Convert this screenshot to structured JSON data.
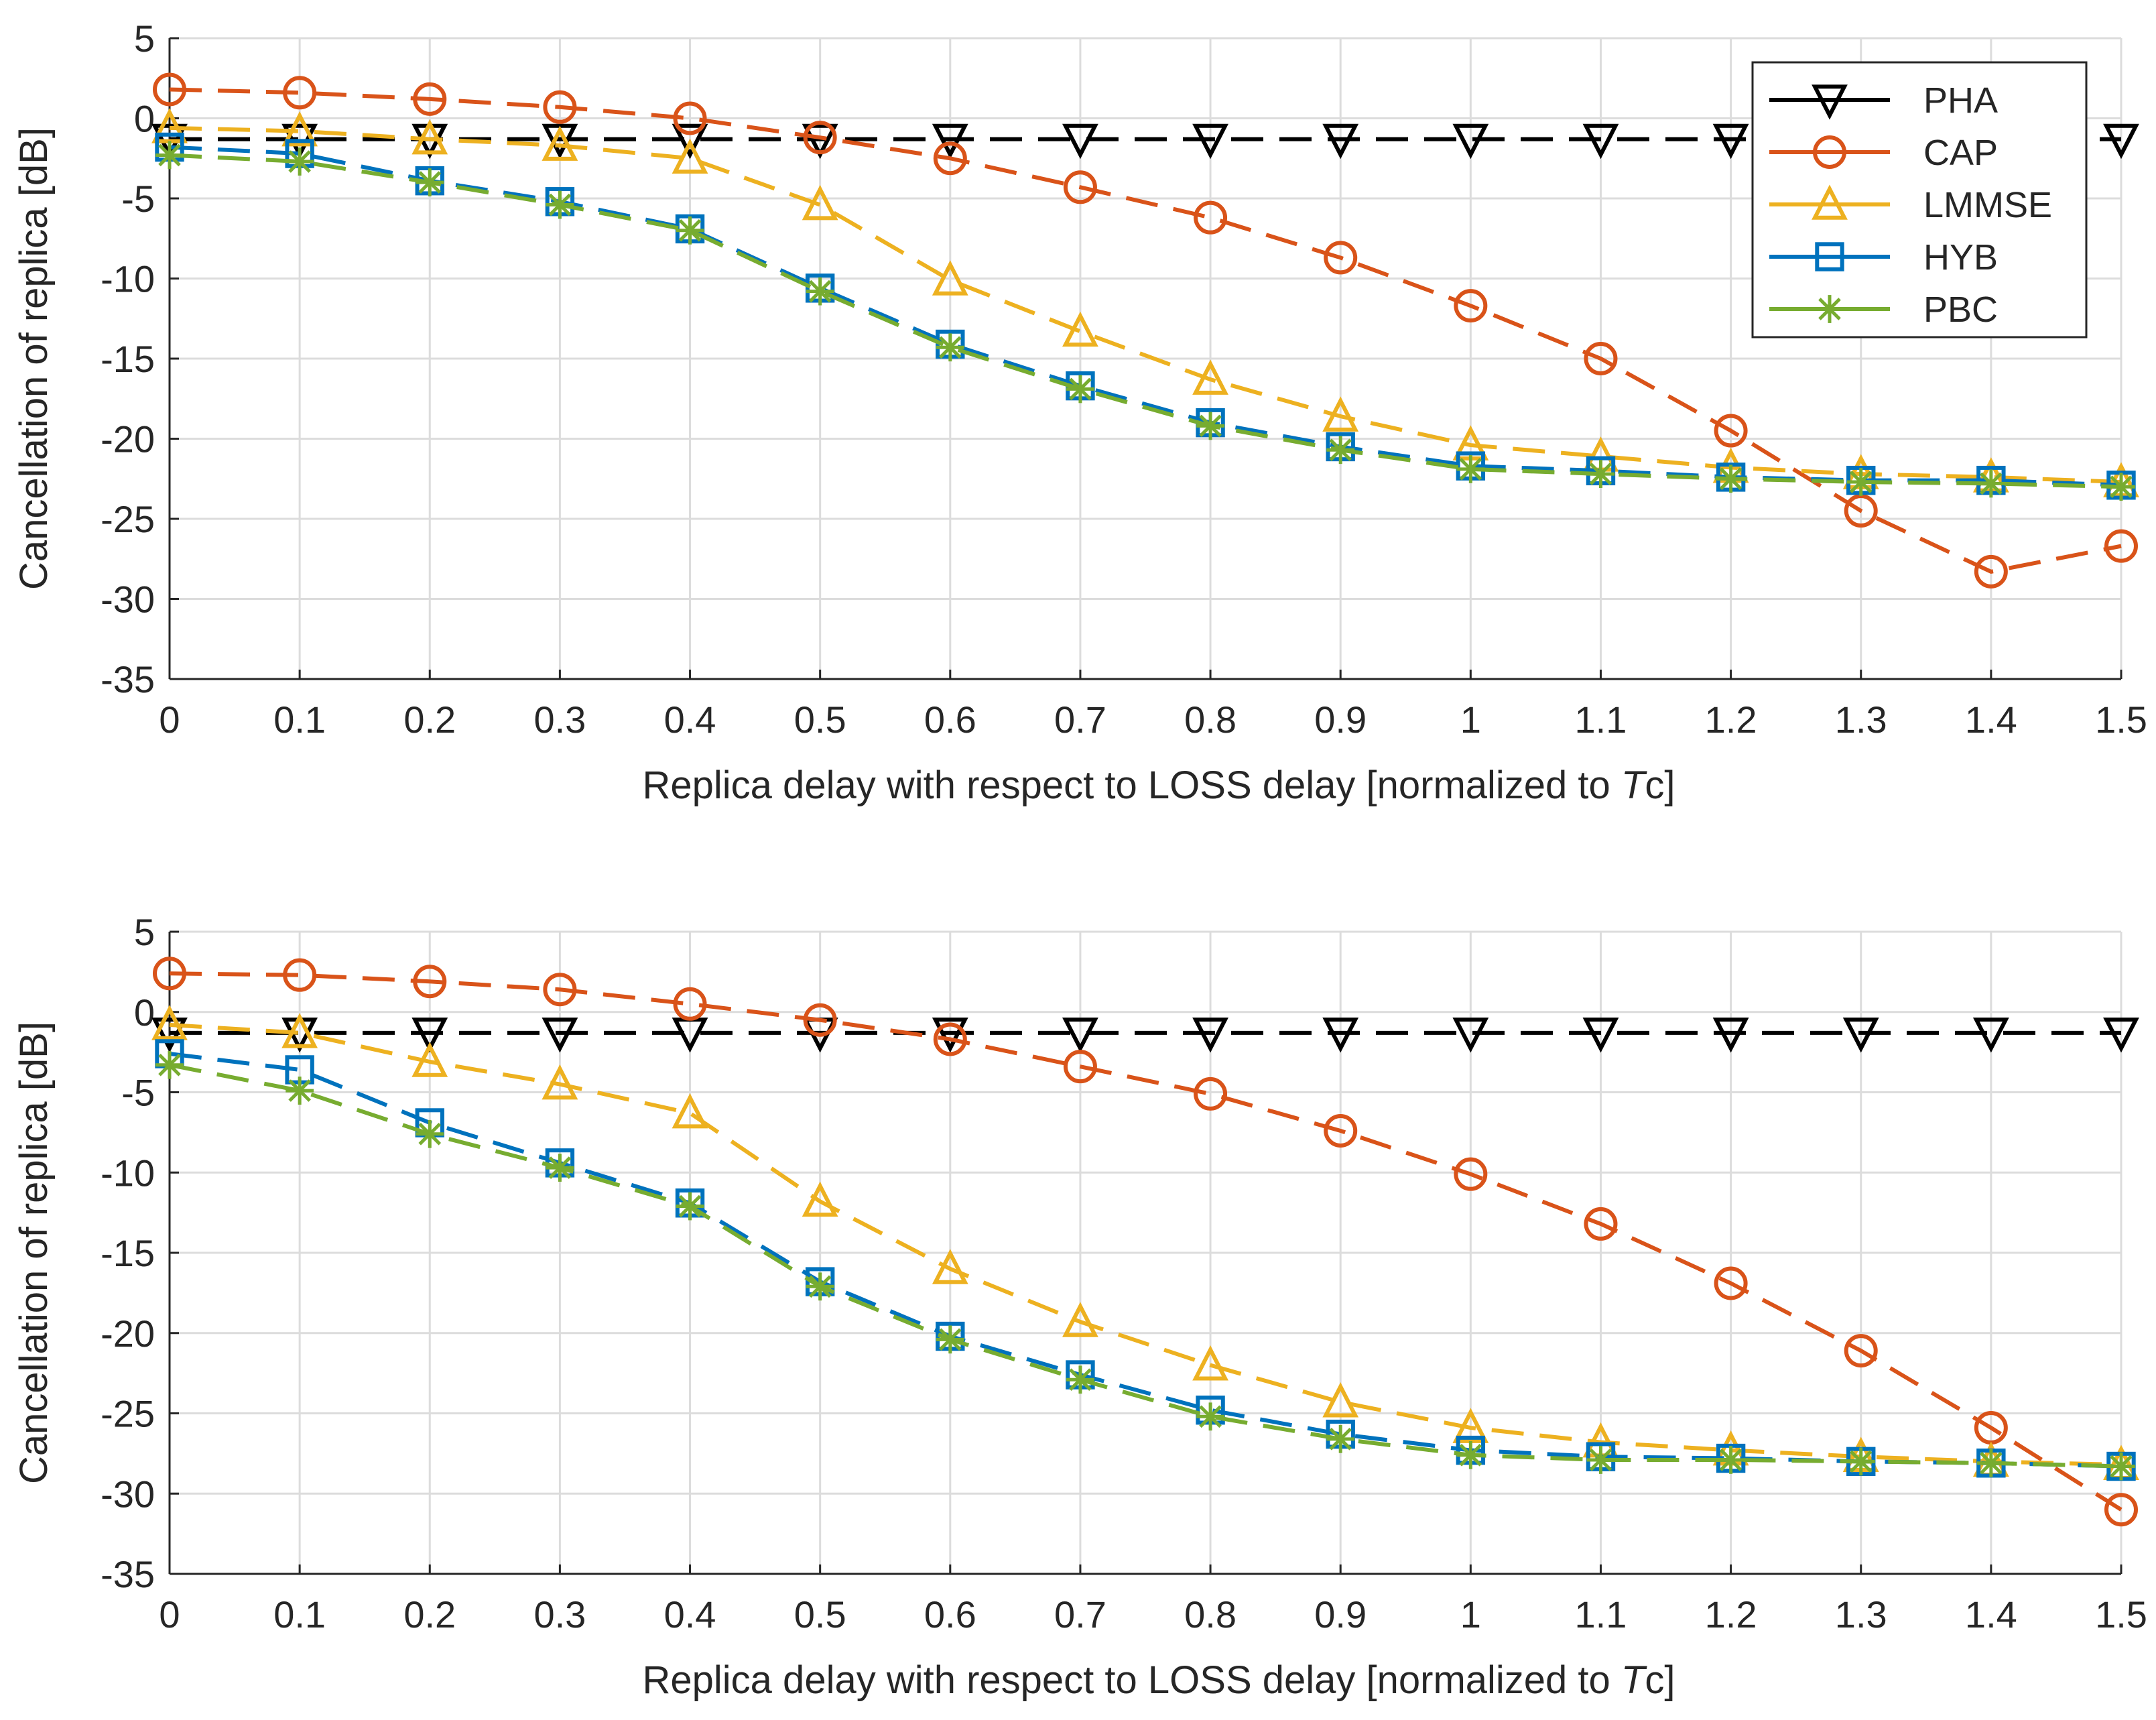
{
  "chart_data": [
    {
      "type": "line",
      "title": "",
      "xlabel": "Replica delay with respect to LOSS delay [normalized to Tc]",
      "xlabel_prefix": "Replica delay with respect to LOSS delay [normalized to ",
      "xlabel_italic": "T",
      "xlabel_suffix": "c]",
      "ylabel": "Cancellation of replica [dB]",
      "xlim": [
        0,
        1.5
      ],
      "ylim": [
        -35,
        5
      ],
      "grid": true,
      "x": [
        0,
        0.1,
        0.2,
        0.3,
        0.4,
        0.5,
        0.6,
        0.7,
        0.8,
        0.9,
        1,
        1.1,
        1.2,
        1.3,
        1.4,
        1.5
      ],
      "x_tick_labels": [
        "0",
        "0.1",
        "0.2",
        "0.3",
        "0.4",
        "0.5",
        "0.6",
        "0.7",
        "0.8",
        "0.9",
        "1",
        "1.1",
        "1.2",
        "1.3",
        "1.4",
        "1.5"
      ],
      "y_ticks": [
        5,
        0,
        -5,
        -10,
        -15,
        -20,
        -25,
        -30,
        -35
      ],
      "y_tick_labels": [
        "5",
        "0",
        "-5",
        "-10",
        "-15",
        "-20",
        "-25",
        "-30",
        "-35"
      ],
      "legend": {
        "placement": "top-right",
        "entries": [
          "PHA",
          "CAP",
          "LMMSE",
          "HYB",
          "PBC"
        ]
      },
      "series": [
        {
          "name": "PHA",
          "color": "#000000",
          "marker": "triangle-down",
          "values": [
            -1.3,
            -1.3,
            -1.3,
            -1.3,
            -1.3,
            -1.3,
            -1.3,
            -1.3,
            -1.3,
            -1.3,
            -1.3,
            -1.3,
            -1.3,
            -1.3,
            -1.3,
            -1.3
          ]
        },
        {
          "name": "CAP",
          "color": "#D95319",
          "marker": "circle",
          "values": [
            1.8,
            1.6,
            1.2,
            0.7,
            0.0,
            -1.2,
            -2.5,
            -4.3,
            -6.2,
            -8.7,
            -11.7,
            -15.0,
            -19.5,
            -24.5,
            -28.3,
            -26.7
          ]
        },
        {
          "name": "LMMSE",
          "color": "#EDB120",
          "marker": "triangle-up",
          "values": [
            -0.6,
            -0.8,
            -1.3,
            -1.7,
            -2.5,
            -5.4,
            -10.1,
            -13.3,
            -16.3,
            -18.6,
            -20.4,
            -21.1,
            -21.8,
            -22.2,
            -22.4,
            -22.7
          ]
        },
        {
          "name": "HYB",
          "color": "#0072BD",
          "marker": "square",
          "values": [
            -1.8,
            -2.2,
            -3.9,
            -5.2,
            -6.9,
            -10.6,
            -14.1,
            -16.7,
            -19.0,
            -20.5,
            -21.7,
            -22.0,
            -22.4,
            -22.6,
            -22.6,
            -22.9
          ]
        },
        {
          "name": "PBC",
          "color": "#77AC30",
          "marker": "asterisk",
          "values": [
            -2.3,
            -2.7,
            -4.0,
            -5.4,
            -7.0,
            -10.8,
            -14.3,
            -16.9,
            -19.2,
            -20.7,
            -21.9,
            -22.2,
            -22.5,
            -22.7,
            -22.8,
            -23.0
          ]
        }
      ]
    },
    {
      "type": "line",
      "title": "",
      "xlabel": "Replica delay with respect to LOSS delay [normalized to Tc]",
      "xlabel_prefix": "Replica delay with respect to LOSS delay [normalized to ",
      "xlabel_italic": "T",
      "xlabel_suffix": "c]",
      "ylabel": "Cancellation of replica [dB]",
      "xlim": [
        0,
        1.5
      ],
      "ylim": [
        -35,
        5
      ],
      "grid": true,
      "x": [
        0,
        0.1,
        0.2,
        0.3,
        0.4,
        0.5,
        0.6,
        0.7,
        0.8,
        0.9,
        1,
        1.1,
        1.2,
        1.3,
        1.4,
        1.5
      ],
      "x_tick_labels": [
        "0",
        "0.1",
        "0.2",
        "0.3",
        "0.4",
        "0.5",
        "0.6",
        "0.7",
        "0.8",
        "0.9",
        "1",
        "1.1",
        "1.2",
        "1.3",
        "1.4",
        "1.5"
      ],
      "y_ticks": [
        5,
        0,
        -5,
        -10,
        -15,
        -20,
        -25,
        -30,
        -35
      ],
      "y_tick_labels": [
        "5",
        "0",
        "-5",
        "-10",
        "-15",
        "-20",
        "-25",
        "-30",
        "-35"
      ],
      "series": [
        {
          "name": "PHA",
          "color": "#000000",
          "marker": "triangle-down",
          "values": [
            -1.3,
            -1.3,
            -1.3,
            -1.3,
            -1.3,
            -1.3,
            -1.3,
            -1.3,
            -1.3,
            -1.3,
            -1.3,
            -1.3,
            -1.3,
            -1.3,
            -1.3,
            -1.3
          ]
        },
        {
          "name": "CAP",
          "color": "#D95319",
          "marker": "circle",
          "values": [
            2.4,
            2.3,
            1.9,
            1.4,
            0.5,
            -0.5,
            -1.7,
            -3.4,
            -5.1,
            -7.4,
            -10.1,
            -13.2,
            -16.9,
            -21.1,
            -25.9,
            -31.0
          ]
        },
        {
          "name": "LMMSE",
          "color": "#EDB120",
          "marker": "triangle-up",
          "values": [
            -0.8,
            -1.3,
            -3.1,
            -4.5,
            -6.3,
            -11.8,
            -16.0,
            -19.3,
            -22.0,
            -24.3,
            -25.9,
            -26.8,
            -27.3,
            -27.7,
            -28.0,
            -28.2
          ]
        },
        {
          "name": "HYB",
          "color": "#0072BD",
          "marker": "square",
          "values": [
            -2.6,
            -3.6,
            -6.9,
            -9.4,
            -11.9,
            -16.8,
            -20.2,
            -22.6,
            -24.8,
            -26.3,
            -27.3,
            -27.7,
            -27.8,
            -28.0,
            -28.1,
            -28.3
          ]
        },
        {
          "name": "PBC",
          "color": "#77AC30",
          "marker": "asterisk",
          "values": [
            -3.3,
            -4.9,
            -7.6,
            -9.7,
            -12.1,
            -17.1,
            -20.4,
            -22.9,
            -25.2,
            -26.6,
            -27.6,
            -27.9,
            -27.9,
            -28.0,
            -28.1,
            -28.3
          ]
        }
      ]
    }
  ]
}
